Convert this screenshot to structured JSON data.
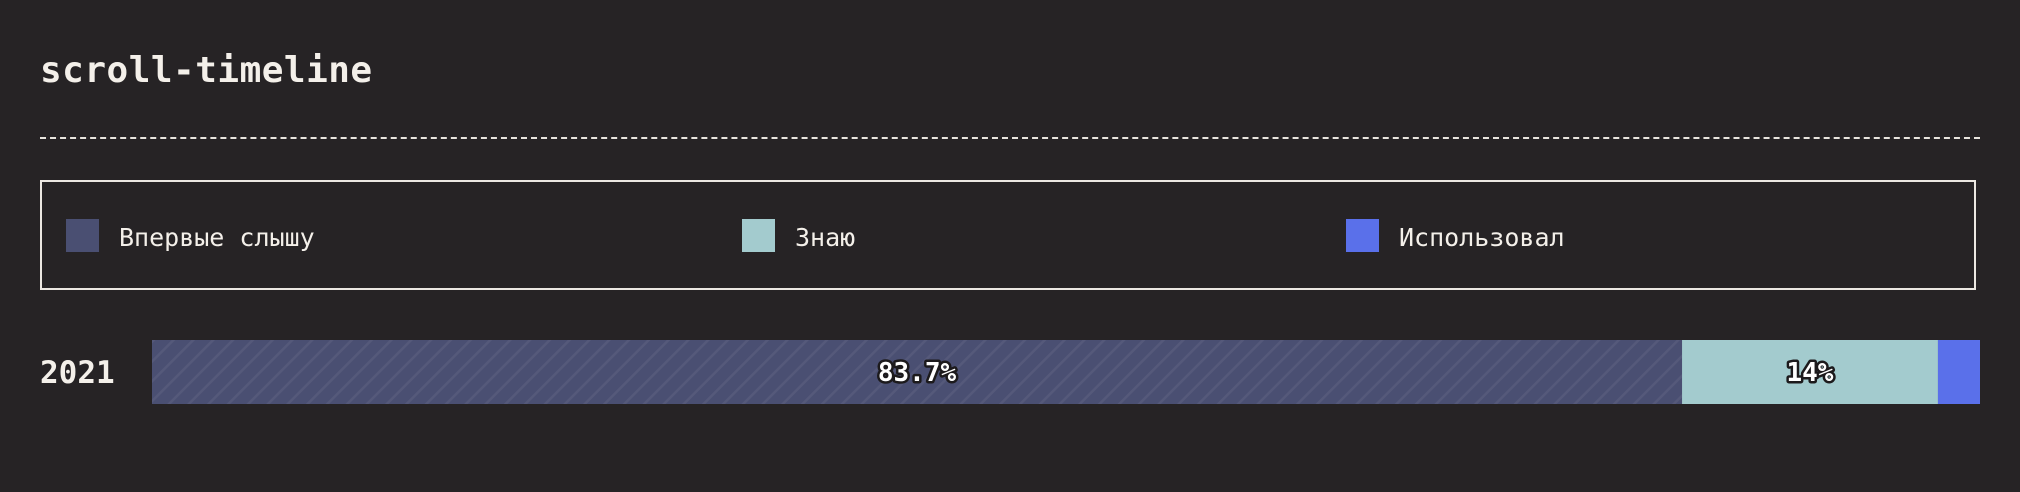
{
  "title": "scroll-timeline",
  "legend": {
    "items": [
      {
        "label": "Впервые слышу",
        "color": "#4a4f72"
      },
      {
        "label": "Знаю",
        "color": "#a3cbce"
      },
      {
        "label": "Использовал",
        "color": "#5a70ea"
      }
    ]
  },
  "chart_data": {
    "type": "bar",
    "orientation": "horizontal",
    "stacked": true,
    "categories": [
      "2021"
    ],
    "series": [
      {
        "name": "Впервые слышу",
        "values": [
          83.7
        ],
        "label": "83.7%",
        "color": "#4a4f72"
      },
      {
        "name": "Знаю",
        "values": [
          14
        ],
        "label": "14%",
        "color": "#a3cbce"
      },
      {
        "name": "Использовал",
        "values": [
          2.3
        ],
        "label": "",
        "color": "#5a70ea"
      }
    ],
    "xlim": [
      0,
      100
    ],
    "grid": false,
    "legend_position": "top"
  }
}
